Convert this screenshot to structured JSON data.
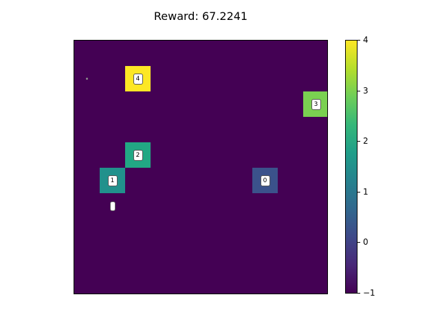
{
  "title": "Reward: 67.2241",
  "grid": {
    "rows": 10,
    "cols": 10,
    "background_value": -1,
    "cells": [
      {
        "id": "4",
        "row": 1,
        "col": 2,
        "value": 4
      },
      {
        "id": "3",
        "row": 2,
        "col": 9,
        "value": 3
      },
      {
        "id": "2",
        "row": 4,
        "col": 2,
        "value": 2
      },
      {
        "id": "1",
        "row": 5,
        "col": 1,
        "value": 1
      },
      {
        "id": "0",
        "row": 5,
        "col": 7,
        "value": 0
      }
    ],
    "agent": {
      "row": 6,
      "col": 1
    },
    "marker": {
      "row": 1,
      "col": 0
    }
  },
  "colorbar": {
    "min": -1,
    "max": 4,
    "ticks": [
      "−1",
      "0",
      "1",
      "2",
      "3",
      "4"
    ],
    "colormap": "viridis",
    "colors": {
      "-1": "#440154",
      "0": "#3b528b",
      "1": "#21918c",
      "2": "#22a884",
      "3": "#7ad151",
      "4": "#fde725"
    }
  }
}
